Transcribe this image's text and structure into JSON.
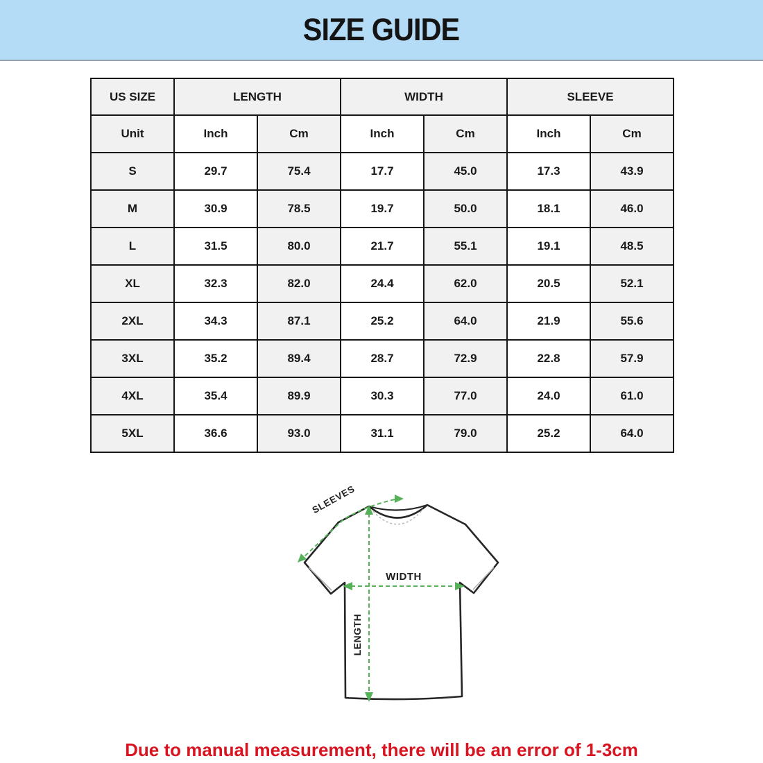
{
  "header": {
    "title": "SIZE GUIDE"
  },
  "table": {
    "group_headers": [
      {
        "label": "US SIZE"
      },
      {
        "label": "LENGTH"
      },
      {
        "label": "WIDTH"
      },
      {
        "label": "SLEEVE"
      }
    ],
    "unit_row": [
      "Unit",
      "Inch",
      "Cm",
      "Inch",
      "Cm",
      "Inch",
      "Cm"
    ],
    "rows": [
      {
        "size": "S",
        "values": [
          "29.7",
          "75.4",
          "17.7",
          "45.0",
          "17.3",
          "43.9"
        ]
      },
      {
        "size": "M",
        "values": [
          "30.9",
          "78.5",
          "19.7",
          "50.0",
          "18.1",
          "46.0"
        ]
      },
      {
        "size": "L",
        "values": [
          "31.5",
          "80.0",
          "21.7",
          "55.1",
          "19.1",
          "48.5"
        ]
      },
      {
        "size": "XL",
        "values": [
          "32.3",
          "82.0",
          "24.4",
          "62.0",
          "20.5",
          "52.1"
        ]
      },
      {
        "size": "2XL",
        "values": [
          "34.3",
          "87.1",
          "25.2",
          "64.0",
          "21.9",
          "55.6"
        ]
      },
      {
        "size": "3XL",
        "values": [
          "35.2",
          "89.4",
          "28.7",
          "72.9",
          "22.8",
          "57.9"
        ]
      },
      {
        "size": "4XL",
        "values": [
          "35.4",
          "89.9",
          "30.3",
          "77.0",
          "24.0",
          "61.0"
        ]
      },
      {
        "size": "5XL",
        "values": [
          "36.6",
          "93.0",
          "31.1",
          "79.0",
          "25.2",
          "64.0"
        ]
      }
    ]
  },
  "diagram": {
    "labels": {
      "sleeve": "SLEEVES",
      "width": "WIDTH",
      "length": "LENGTH"
    }
  },
  "footer": {
    "note": "Due to manual measurement, there will be an error of 1-3cm"
  },
  "colors": {
    "header_bg": "#b5dcf6",
    "cell_gray": "#f1f1f1",
    "table_border": "#161616",
    "accent_green": "#55b259",
    "note_red": "#d81420"
  }
}
